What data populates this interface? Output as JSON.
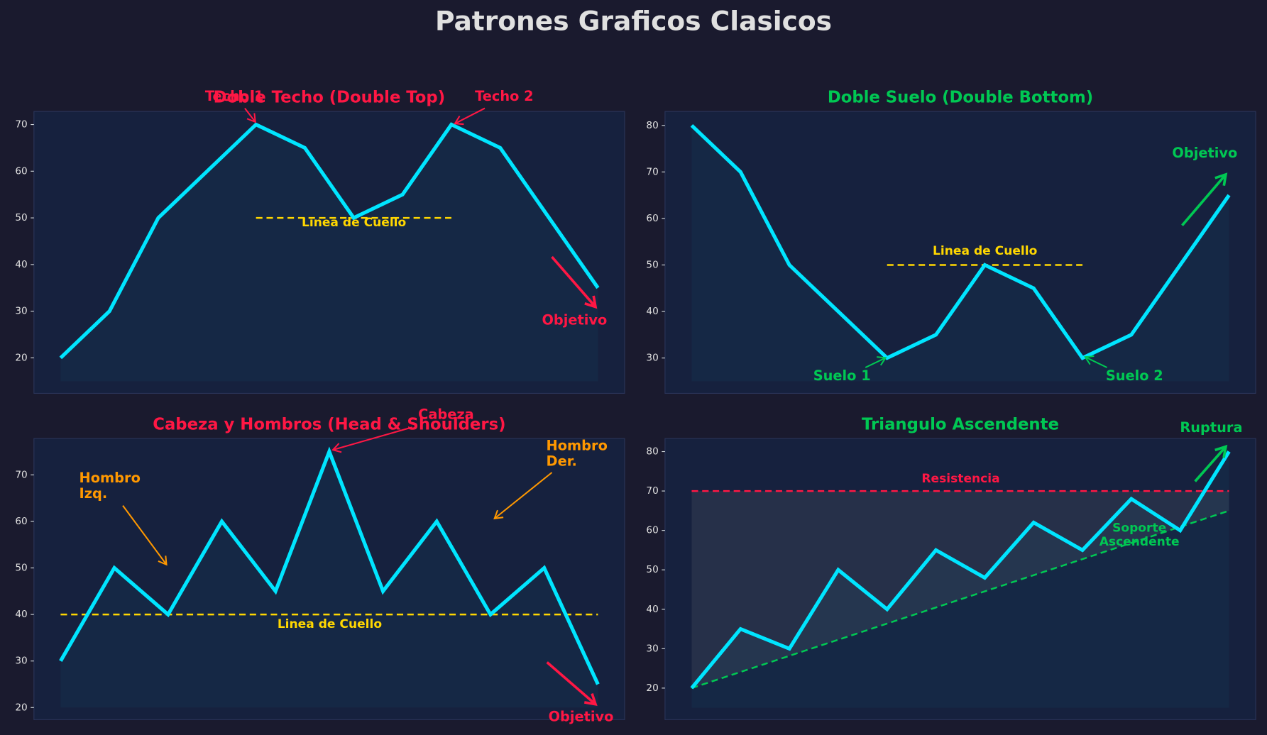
{
  "title": "Patrones Graficos Clasicos",
  "chart_data": [
    {
      "type": "line",
      "title": "Doble Techo (Double Top)",
      "title_color": "#ff1744",
      "values": [
        20,
        30,
        50,
        60,
        70,
        65,
        50,
        55,
        70,
        65,
        50,
        35
      ],
      "color": "#00e5ff",
      "fill_to": 15,
      "ylim": [
        12.4,
        72.8
      ],
      "yticks": [
        20,
        30,
        40,
        50,
        60,
        70
      ],
      "reference_lines": [
        {
          "label": "Linea de Cuello",
          "color": "#ffd700",
          "x": [
            4,
            8
          ],
          "values": [
            50,
            50
          ]
        }
      ],
      "annotations": [
        {
          "text": "Techo 1",
          "color": "#ff1744"
        },
        {
          "text": "Techo 2",
          "color": "#ff1744"
        },
        {
          "text": "Objetivo",
          "color": "#ff1744"
        }
      ]
    },
    {
      "type": "line",
      "title": "Doble Suelo (Double Bottom)",
      "title_color": "#00c853",
      "values": [
        80,
        70,
        50,
        40,
        30,
        35,
        50,
        45,
        30,
        35,
        50,
        65
      ],
      "color": "#00e5ff",
      "fill_to": 25,
      "ylim": [
        22.4,
        83
      ],
      "yticks": [
        30,
        40,
        50,
        60,
        70,
        80
      ],
      "reference_lines": [
        {
          "label": "Linea de Cuello",
          "color": "#ffd700",
          "x": [
            4,
            8
          ],
          "values": [
            50,
            50
          ]
        }
      ],
      "annotations": [
        {
          "text": "Suelo 1",
          "color": "#00c853"
        },
        {
          "text": "Suelo 2",
          "color": "#00c853"
        },
        {
          "text": "Objetivo",
          "color": "#00c853"
        }
      ]
    },
    {
      "type": "line",
      "title": "Cabeza y Hombros (Head & Shoulders)",
      "title_color": "#ff1744",
      "values": [
        30,
        50,
        40,
        60,
        45,
        75,
        45,
        60,
        40,
        50,
        25
      ],
      "color": "#00e5ff",
      "fill_to": 20,
      "ylim": [
        17.4,
        77.8
      ],
      "yticks": [
        20,
        30,
        40,
        50,
        60,
        70
      ],
      "reference_lines": [
        {
          "label": "Linea de Cuello",
          "color": "#ffd700",
          "x": [
            0,
            10
          ],
          "values": [
            40,
            40
          ]
        }
      ],
      "annotations": [
        {
          "text": "Hombro\nIzq.",
          "color": "#ff9800"
        },
        {
          "text": "Cabeza",
          "color": "#ff1744"
        },
        {
          "text": "Hombro\nDer.",
          "color": "#ff9800"
        },
        {
          "text": "Objetivo",
          "color": "#ff1744"
        }
      ]
    },
    {
      "type": "line",
      "title": "Triangulo Ascendente",
      "title_color": "#00c853",
      "values": [
        20,
        35,
        30,
        50,
        40,
        55,
        48,
        62,
        55,
        68,
        60,
        80
      ],
      "color": "#00e5ff",
      "fill_to": 15,
      "ylim": [
        12,
        83.3
      ],
      "yticks": [
        20,
        30,
        40,
        50,
        60,
        70,
        80
      ],
      "fill_between_color": "#9e9e9e",
      "reference_lines": [
        {
          "label": "Resistencia",
          "color": "#ff1744",
          "x": [
            0,
            11
          ],
          "values": [
            70,
            70
          ]
        },
        {
          "label": "Soporte\nAscendente",
          "color": "#00c853",
          "x": [
            0,
            11
          ],
          "values": [
            20,
            65
          ]
        }
      ],
      "annotations": [
        {
          "text": "Ruptura",
          "color": "#00c853"
        }
      ]
    }
  ]
}
